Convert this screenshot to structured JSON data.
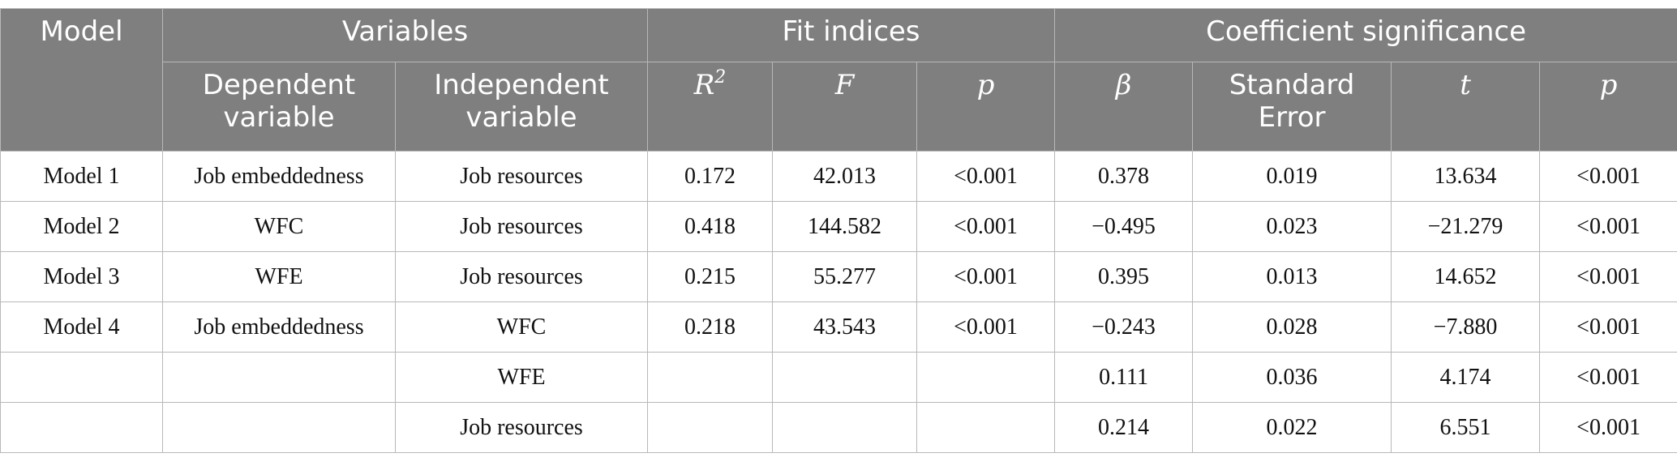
{
  "table": {
    "header": {
      "row1": [
        "Model",
        "Variables",
        "Fit indices",
        "Coefficient significance"
      ],
      "row2": [
        "Dependent variable",
        "Independent variable",
        {
          "base": "R",
          "sup": "2"
        },
        "F",
        "p",
        "β",
        "Standard Error",
        "t",
        "p"
      ]
    },
    "rows": [
      [
        "Model 1",
        "Job embeddedness",
        "Job resources",
        "0.172",
        "42.013",
        "<0.001",
        "0.378",
        "0.019",
        "13.634",
        "<0.001"
      ],
      [
        "Model 2",
        "WFC",
        "Job resources",
        "0.418",
        "144.582",
        "<0.001",
        "−0.495",
        "0.023",
        "−21.279",
        "<0.001"
      ],
      [
        "Model 3",
        "WFE",
        "Job resources",
        "0.215",
        "55.277",
        "<0.001",
        "0.395",
        "0.013",
        "14.652",
        "<0.001"
      ],
      [
        "Model 4",
        "Job embeddedness",
        "WFC",
        "0.218",
        "43.543",
        "<0.001",
        "−0.243",
        "0.028",
        "−7.880",
        "<0.001"
      ],
      [
        null,
        null,
        "WFE",
        null,
        null,
        null,
        "0.111",
        "0.036",
        "4.174",
        "<0.001"
      ],
      [
        null,
        null,
        "Job resources",
        null,
        null,
        null,
        "0.214",
        "0.022",
        "6.551",
        "<0.001"
      ]
    ]
  }
}
